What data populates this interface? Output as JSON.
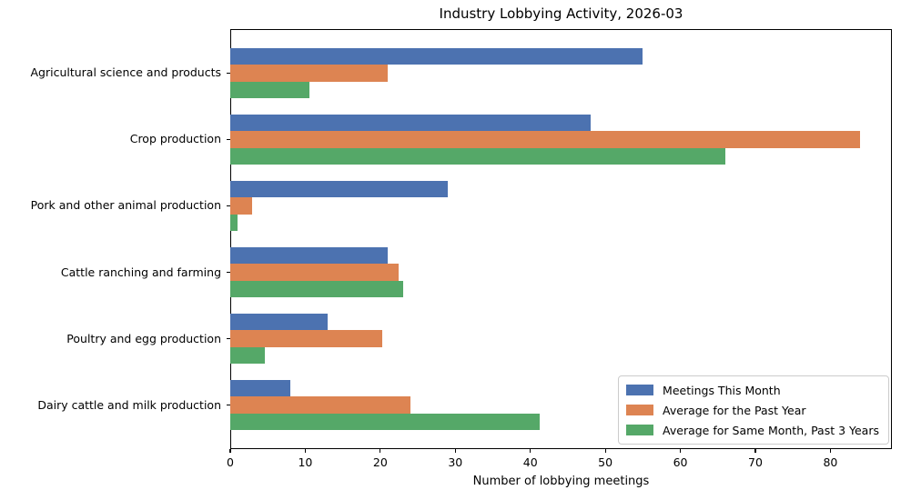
{
  "chart_data": {
    "type": "bar",
    "orientation": "horizontal",
    "title": "Industry Lobbying Activity, 2026-03",
    "xlabel": "Number of lobbying meetings",
    "ylabel": "",
    "categories": [
      "Agricultural science and products",
      "Crop production",
      "Pork and other animal production",
      "Cattle ranching and farming",
      "Poultry and egg production",
      "Dairy cattle and milk production"
    ],
    "series": [
      {
        "name": "Meetings This Month",
        "color": "#4C72B0",
        "values": [
          55,
          48,
          29,
          21,
          13,
          8
        ]
      },
      {
        "name": "Average for the Past Year",
        "color": "#DD8452",
        "values": [
          21,
          84,
          2.9,
          22.5,
          20.2,
          24
        ]
      },
      {
        "name": "Average for Same Month, Past 3 Years",
        "color": "#55A868",
        "values": [
          10.5,
          66,
          1,
          23,
          4.6,
          41.3
        ]
      }
    ],
    "xlim": [
      0,
      88.2
    ],
    "xticks": [
      0,
      10,
      20,
      30,
      40,
      50,
      60,
      70,
      80
    ],
    "grid": false,
    "legend_position": "lower right"
  }
}
